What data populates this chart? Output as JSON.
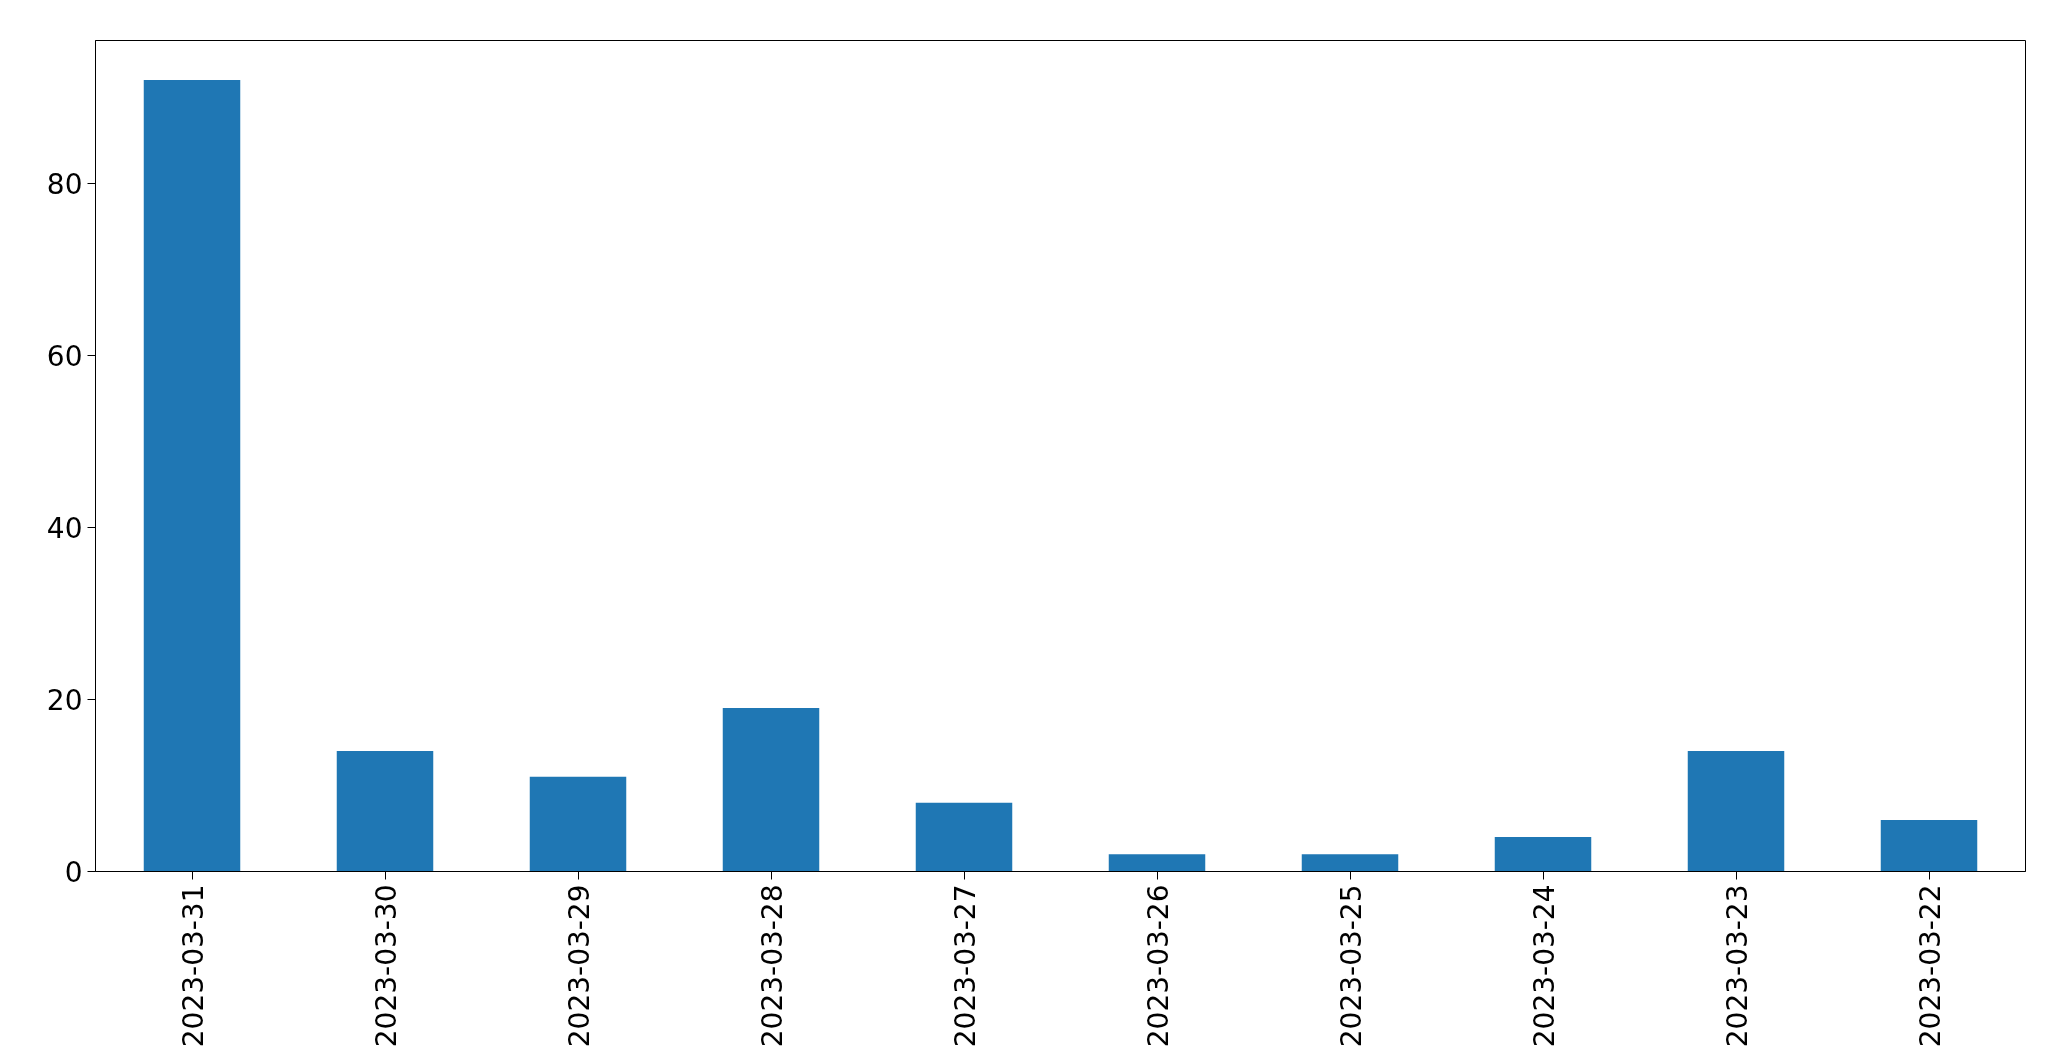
{
  "chart_data": {
    "type": "bar",
    "categories": [
      "2023-03-31",
      "2023-03-30",
      "2023-03-29",
      "2023-03-28",
      "2023-03-27",
      "2023-03-26",
      "2023-03-25",
      "2023-03-24",
      "2023-03-23",
      "2023-03-22"
    ],
    "values": [
      92,
      14,
      11,
      19,
      8,
      2,
      2,
      4,
      14,
      6
    ],
    "color": "#1f77b4",
    "ylim": [
      0,
      96.6
    ],
    "yticks": [
      0,
      20,
      40,
      60,
      80
    ],
    "grid": false
  }
}
